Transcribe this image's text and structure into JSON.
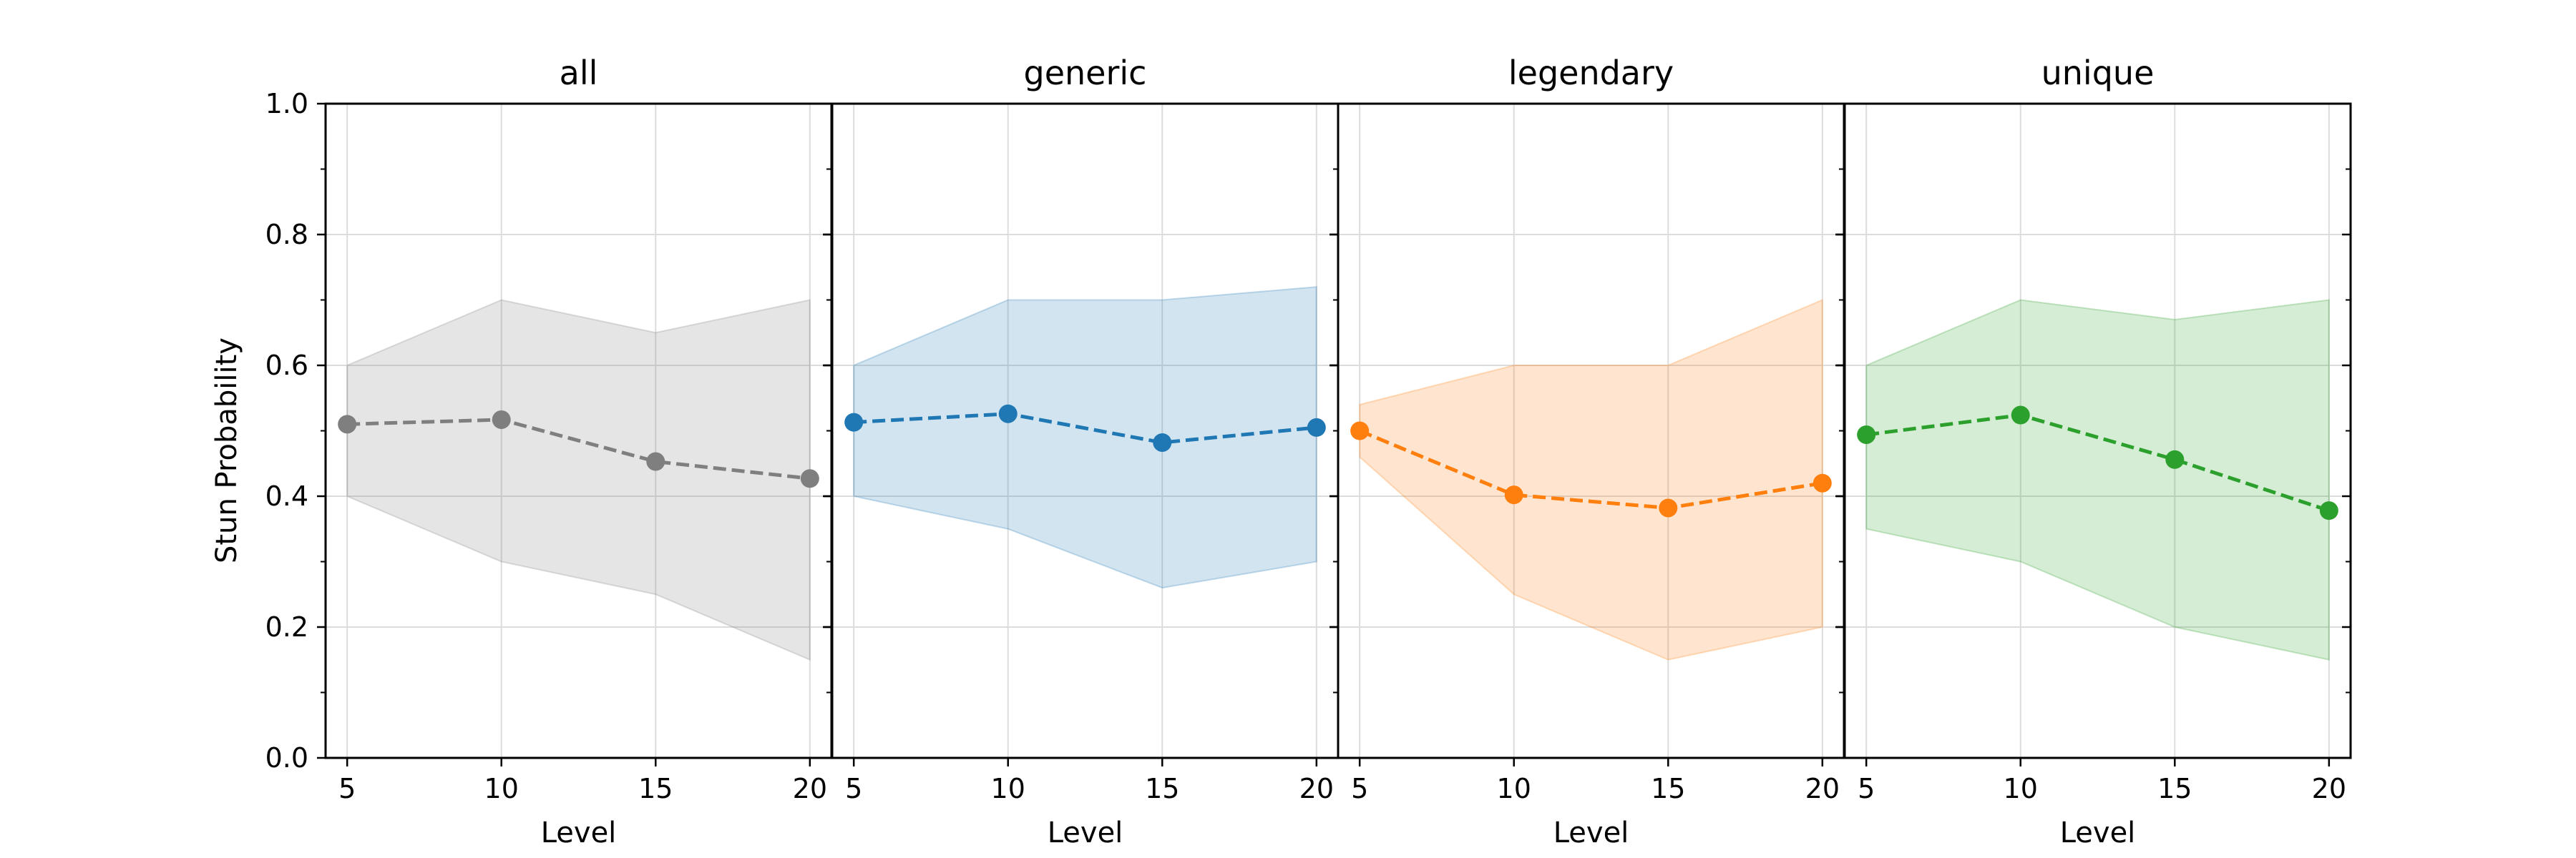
{
  "chart_data": {
    "type": "line",
    "ylabel": "Stun Probability",
    "ylim": [
      0,
      1
    ],
    "yticks": [
      "0.0",
      "0.2",
      "0.4",
      "0.6",
      "0.8",
      "1.0"
    ],
    "grid": true,
    "shared_y": true,
    "panels": [
      {
        "title": "all",
        "xlabel": "Level",
        "x": [
          5,
          10,
          15,
          20
        ],
        "xticks": [
          "5",
          "10",
          "15",
          "20"
        ],
        "color": "#7f7f7f",
        "mean": [
          0.51,
          0.517,
          0.453,
          0.427
        ],
        "lower": [
          0.4,
          0.3,
          0.25,
          0.15
        ],
        "upper": [
          0.6,
          0.7,
          0.65,
          0.7
        ]
      },
      {
        "title": "generic",
        "xlabel": "Level",
        "x": [
          5,
          10,
          15,
          20
        ],
        "xticks": [
          "5",
          "10",
          "15",
          "20"
        ],
        "color": "#1f77b4",
        "mean": [
          0.513,
          0.526,
          0.482,
          0.505
        ],
        "lower": [
          0.4,
          0.35,
          0.26,
          0.3
        ],
        "upper": [
          0.6,
          0.7,
          0.7,
          0.72
        ]
      },
      {
        "title": "legendary",
        "xlabel": "Level",
        "x": [
          5,
          10,
          15,
          20
        ],
        "xticks": [
          "5",
          "10",
          "15",
          "20"
        ],
        "color": "#ff7f0e",
        "mean": [
          0.5,
          0.402,
          0.382,
          0.42
        ],
        "lower": [
          0.46,
          0.25,
          0.15,
          0.2
        ],
        "upper": [
          0.54,
          0.6,
          0.6,
          0.7
        ]
      },
      {
        "title": "unique",
        "xlabel": "Level",
        "x": [
          5,
          10,
          15,
          20
        ],
        "xticks": [
          "5",
          "10",
          "15",
          "20"
        ],
        "color": "#2ca02c",
        "mean": [
          0.494,
          0.524,
          0.456,
          0.378
        ],
        "lower": [
          0.35,
          0.3,
          0.2,
          0.15
        ],
        "upper": [
          0.6,
          0.7,
          0.67,
          0.7
        ]
      }
    ]
  }
}
